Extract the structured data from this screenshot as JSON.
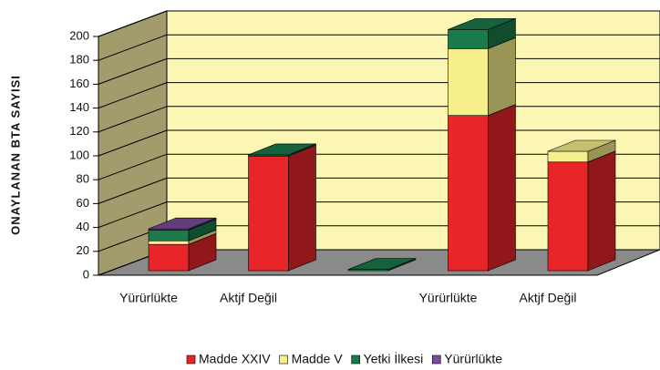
{
  "chart_data": {
    "type": "bar3d_stacked",
    "y_label": "ONAYLANAN BTA SAYISI",
    "categories": [
      "Yürürlükte",
      "Aktjf Değil",
      null,
      "Yürürlükte",
      "Aktjf Değil"
    ],
    "series": [
      {
        "name": "Madde XXIV",
        "color": "#e8262a",
        "values": [
          22,
          96,
          0,
          130,
          91
        ]
      },
      {
        "name": "Madde V",
        "color": "#f5f08c",
        "values": [
          3,
          0,
          0,
          56,
          9
        ]
      },
      {
        "name": "Yetki İlkesi",
        "color": "#1b7a4c",
        "values": [
          9,
          1,
          1,
          16,
          0
        ]
      },
      {
        "name": "Yürürlükte",
        "color": "#7a4d9c",
        "values": [
          1,
          0,
          0,
          0,
          0
        ]
      }
    ],
    "ylim": [
      0,
      200
    ],
    "yticks": [
      0,
      20,
      40,
      60,
      80,
      100,
      120,
      140,
      160,
      180,
      200
    ],
    "grid": true
  }
}
